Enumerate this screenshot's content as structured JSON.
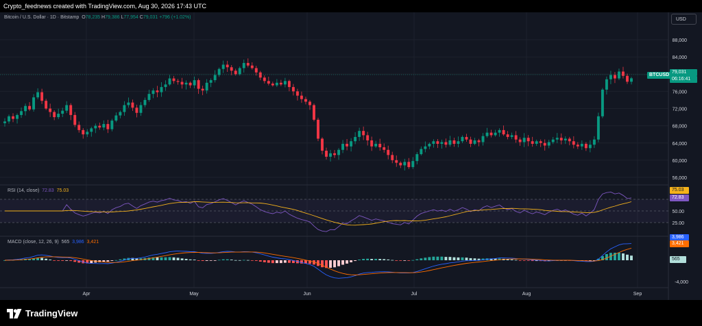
{
  "header": {
    "credit": "Crypto_feednews created with TradingView.com, Aug 30, 2026 17:43 UTC"
  },
  "legend": {
    "symbol": "Bitcoin / U.S. Dollar · 1D · Bitstamp",
    "open_label": "O",
    "open": "78,235",
    "high_label": "H",
    "high": "79,386",
    "low_label": "L",
    "low": "77,954",
    "close_label": "C",
    "close": "79,031",
    "change": "+796 (+1.02%)"
  },
  "currency_button": "USD",
  "price_axis": {
    "ticks": [
      "88,000",
      "84,000",
      "80,000",
      "76,000",
      "72,000",
      "68,000",
      "64,000",
      "60,000",
      "56,000"
    ]
  },
  "last_price": {
    "ticker": "BTCUSD",
    "price": "79,031",
    "countdown": "06:16:41"
  },
  "rsi": {
    "title": "RSI (14, close)",
    "rsi_value": "72.83",
    "ma_value": "75.03",
    "levels": [
      "70.00",
      "50.00",
      "25.00"
    ]
  },
  "macd": {
    "title": "MACD (close, 12, 26, 9)",
    "hist_value": "565",
    "macd_value": "3,986",
    "signal_value": "3,421",
    "axis": [
      "-4,000"
    ]
  },
  "time_axis": [
    "Apr",
    "May",
    "Jun",
    "Jul",
    "Aug",
    "Sep"
  ],
  "brand": "TradingView",
  "colors": {
    "up": "#089981",
    "down": "#f23645",
    "background": "#131722",
    "rsi_line": "#7e57c2",
    "rsi_ma": "#f5b21b",
    "macd_line": "#2962ff",
    "signal_line": "#ff6d00"
  },
  "chart_data": {
    "type": "candlestick",
    "closes": [
      69000,
      70200,
      69600,
      70500,
      71400,
      72600,
      71800,
      74600,
      75800,
      73800,
      72000,
      71200,
      70000,
      70800,
      71500,
      72800,
      70500,
      68200,
      67000,
      66000,
      66600,
      67400,
      68000,
      67600,
      68400,
      67200,
      69200,
      70400,
      71200,
      72800,
      73400,
      72200,
      71000,
      72800,
      74000,
      75400,
      76200,
      75800,
      77000,
      77600,
      79000,
      78400,
      78200,
      77600,
      78000,
      77400,
      78600,
      76600,
      76200,
      78000,
      78600,
      79800,
      81200,
      82200,
      81600,
      80800,
      80000,
      81400,
      82600,
      82000,
      81400,
      80400,
      79200,
      78400,
      77800,
      77400,
      78000,
      77600,
      78400,
      77000,
      76000,
      75000,
      74200,
      73600,
      72800,
      69400,
      65000,
      62200,
      60800,
      61600,
      61200,
      62400,
      63800,
      63200,
      64400,
      65400,
      66800,
      65800,
      64600,
      63200,
      63800,
      63000,
      62400,
      61200,
      60000,
      59400,
      58800,
      59600,
      58400,
      59800,
      61400,
      62600,
      63200,
      63800,
      64400,
      63800,
      64200,
      63600,
      64600,
      63800,
      64400,
      65400,
      64800,
      63800,
      64600,
      64200,
      65600,
      66400,
      65800,
      66400,
      67000,
      66000,
      65400,
      65800,
      64800,
      64200,
      65200,
      64400,
      63800,
      64400,
      64000,
      63400,
      64200,
      64800,
      65200,
      64600,
      65000,
      64400,
      63600,
      63200,
      63800,
      62800,
      63600,
      64800,
      70200,
      76400,
      78800,
      79800,
      79000,
      80600,
      79600,
      78235,
      79031
    ],
    "ylim": [
      54000,
      90000
    ],
    "rsi_range": [
      0,
      100
    ],
    "macd_range": [
      -6000,
      6000
    ]
  }
}
